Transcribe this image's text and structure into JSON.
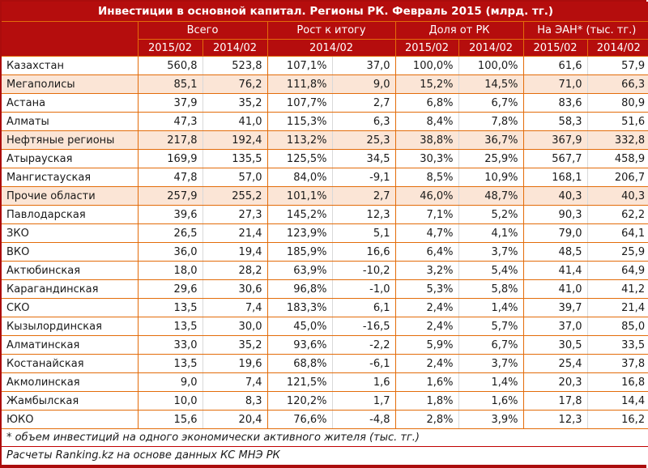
{
  "title": "Инвестиции в основной капитал. Регионы РК. Февраль 2015 (млрд. тг.)",
  "colors": {
    "header_bg": "#b50d0d",
    "outer_border": "#ab0c0c",
    "grid_orange": "#e36c0a",
    "grid_gray": "#d9d9d9",
    "highlight_bg": "#fbe5d6",
    "footer_border": "#c00000",
    "text": "#1a1a1a",
    "header_text": "#ffffff"
  },
  "chart_data": {
    "type": "table",
    "title": "Инвестиции в основной капитал. Регионы РК. Февраль 2015 (млрд. тг.)",
    "column_groups": [
      {
        "label": "Всего",
        "span": 2
      },
      {
        "label": "Рост к итогу",
        "span": 2
      },
      {
        "label": "Доля от РК",
        "span": 2
      },
      {
        "label": "На ЭАН* (тыс. тг.)",
        "span": 2
      }
    ],
    "subheaders": [
      "2015/02",
      "2014/02",
      "2014/02",
      "2015/02",
      "2014/02",
      "2015/02",
      "2014/02"
    ],
    "rows": [
      {
        "region": "Казахстан",
        "highlight": false,
        "values": [
          "560,8",
          "523,8",
          "107,1%",
          "37,0",
          "100,0%",
          "100,0%",
          "61,6",
          "57,9"
        ]
      },
      {
        "region": "Мегаполисы",
        "highlight": true,
        "values": [
          "85,1",
          "76,2",
          "111,8%",
          "9,0",
          "15,2%",
          "14,5%",
          "71,0",
          "66,3"
        ]
      },
      {
        "region": "Астана",
        "highlight": false,
        "values": [
          "37,9",
          "35,2",
          "107,7%",
          "2,7",
          "6,8%",
          "6,7%",
          "83,6",
          "80,9"
        ]
      },
      {
        "region": "Алматы",
        "highlight": false,
        "values": [
          "47,3",
          "41,0",
          "115,3%",
          "6,3",
          "8,4%",
          "7,8%",
          "58,3",
          "51,6"
        ]
      },
      {
        "region": "Нефтяные регионы",
        "highlight": true,
        "values": [
          "217,8",
          "192,4",
          "113,2%",
          "25,3",
          "38,8%",
          "36,7%",
          "367,9",
          "332,8"
        ]
      },
      {
        "region": "Атырауская",
        "highlight": false,
        "values": [
          "169,9",
          "135,5",
          "125,5%",
          "34,5",
          "30,3%",
          "25,9%",
          "567,7",
          "458,9"
        ]
      },
      {
        "region": "Мангистауская",
        "highlight": false,
        "values": [
          "47,8",
          "57,0",
          "84,0%",
          "-9,1",
          "8,5%",
          "10,9%",
          "168,1",
          "206,7"
        ]
      },
      {
        "region": "Прочие области",
        "highlight": true,
        "values": [
          "257,9",
          "255,2",
          "101,1%",
          "2,7",
          "46,0%",
          "48,7%",
          "40,3",
          "40,3"
        ]
      },
      {
        "region": "Павлодарская",
        "highlight": false,
        "values": [
          "39,6",
          "27,3",
          "145,2%",
          "12,3",
          "7,1%",
          "5,2%",
          "90,3",
          "62,2"
        ]
      },
      {
        "region": "ЗКО",
        "highlight": false,
        "values": [
          "26,5",
          "21,4",
          "123,9%",
          "5,1",
          "4,7%",
          "4,1%",
          "79,0",
          "64,1"
        ]
      },
      {
        "region": "ВКО",
        "highlight": false,
        "values": [
          "36,0",
          "19,4",
          "185,9%",
          "16,6",
          "6,4%",
          "3,7%",
          "48,5",
          "25,9"
        ]
      },
      {
        "region": "Актюбинская",
        "highlight": false,
        "values": [
          "18,0",
          "28,2",
          "63,9%",
          "-10,2",
          "3,2%",
          "5,4%",
          "41,4",
          "64,9"
        ]
      },
      {
        "region": "Карагандинская",
        "highlight": false,
        "values": [
          "29,6",
          "30,6",
          "96,8%",
          "-1,0",
          "5,3%",
          "5,8%",
          "41,0",
          "41,2"
        ]
      },
      {
        "region": "СКО",
        "highlight": false,
        "values": [
          "13,5",
          "7,4",
          "183,3%",
          "6,1",
          "2,4%",
          "1,4%",
          "39,7",
          "21,4"
        ]
      },
      {
        "region": "Кызылординская",
        "highlight": false,
        "values": [
          "13,5",
          "30,0",
          "45,0%",
          "-16,5",
          "2,4%",
          "5,7%",
          "37,0",
          "85,0"
        ]
      },
      {
        "region": "Алматинская",
        "highlight": false,
        "values": [
          "33,0",
          "35,2",
          "93,6%",
          "-2,2",
          "5,9%",
          "6,7%",
          "30,5",
          "33,5"
        ]
      },
      {
        "region": "Костанайская",
        "highlight": false,
        "values": [
          "13,5",
          "19,6",
          "68,8%",
          "-6,1",
          "2,4%",
          "3,7%",
          "25,4",
          "37,8"
        ]
      },
      {
        "region": "Акмолинская",
        "highlight": false,
        "values": [
          "9,0",
          "7,4",
          "121,5%",
          "1,6",
          "1,6%",
          "1,4%",
          "20,3",
          "16,8"
        ]
      },
      {
        "region": "Жамбылская",
        "highlight": false,
        "values": [
          "10,0",
          "8,3",
          "120,2%",
          "1,7",
          "1,8%",
          "1,6%",
          "17,8",
          "14,4"
        ]
      },
      {
        "region": "ЮКО",
        "highlight": false,
        "values": [
          "15,6",
          "20,4",
          "76,6%",
          "-4,8",
          "2,8%",
          "3,9%",
          "12,3",
          "16,2"
        ]
      }
    ],
    "footnotes": [
      "* объем инвестиций на одного экономически активного жителя (тыс. тг.)",
      "Расчеты Ranking.kz на основе данных КС МНЭ РК"
    ]
  }
}
